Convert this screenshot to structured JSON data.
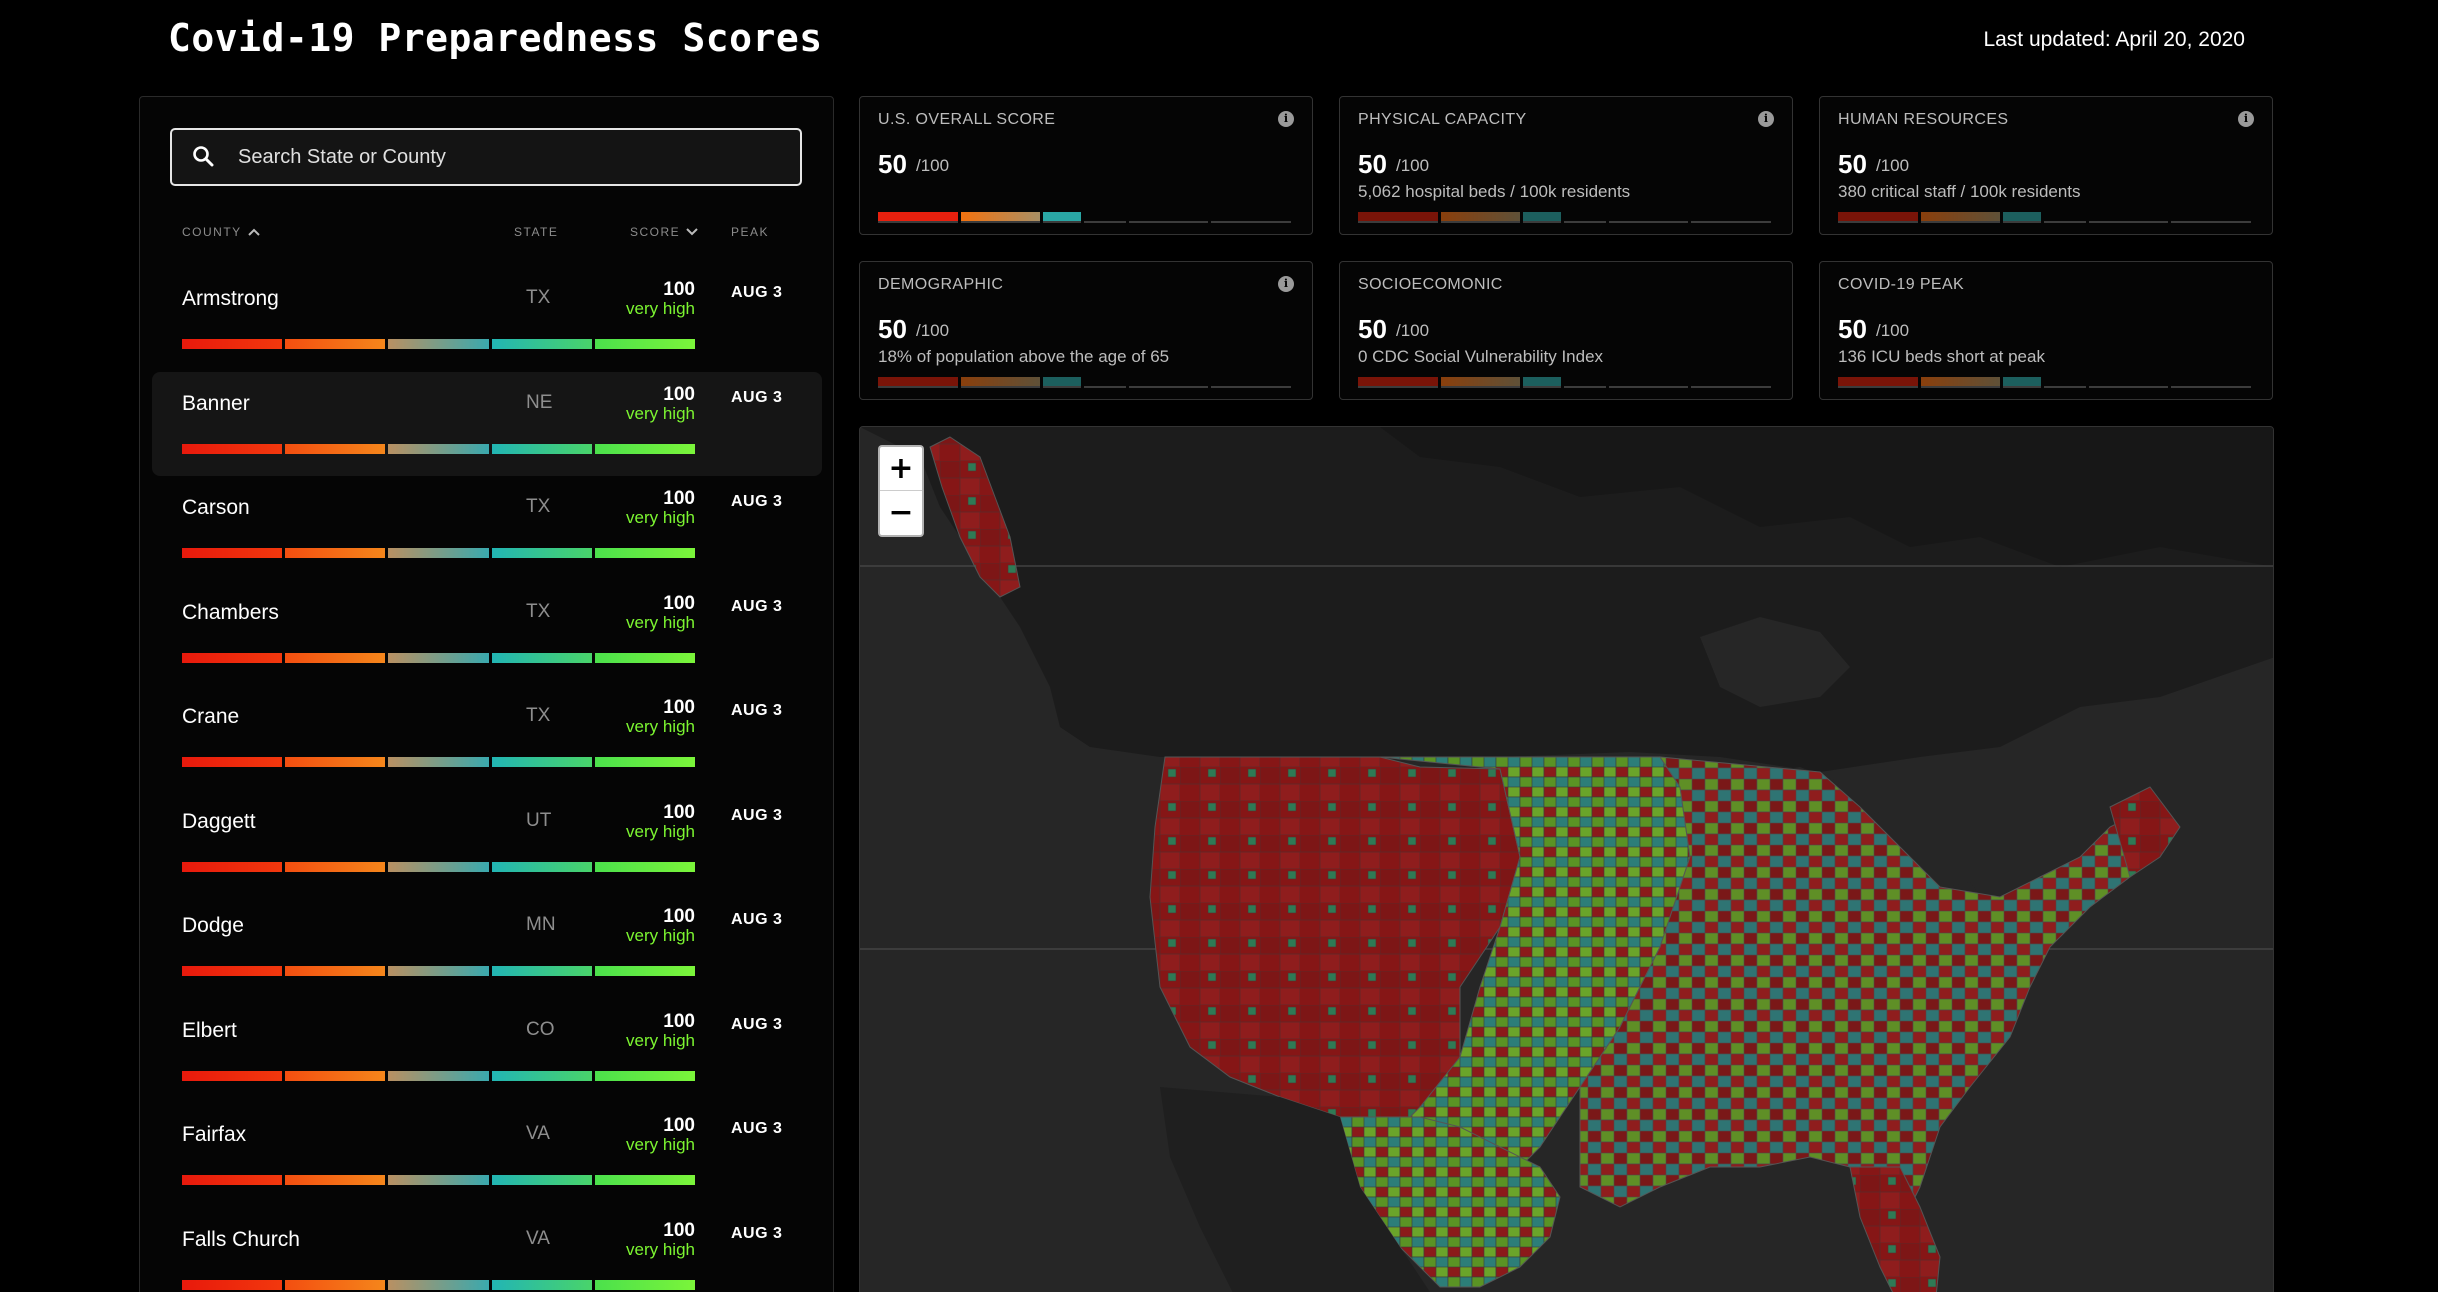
{
  "page": {
    "title": "Covid-19 Preparedness Scores",
    "last_updated": "Last updated: April 20, 2020"
  },
  "search": {
    "placeholder": "Search State or County",
    "value": ""
  },
  "table": {
    "headers": {
      "county": "COUNTY",
      "state": "STATE",
      "score": "SCORE",
      "peak": "PEAK"
    },
    "rows": [
      {
        "county": "Armstrong",
        "state": "TX",
        "score": "100",
        "level": "very high",
        "peak": "AUG 3"
      },
      {
        "county": "Banner",
        "state": "NE",
        "score": "100",
        "level": "very high",
        "peak": "AUG 3"
      },
      {
        "county": "Carson",
        "state": "TX",
        "score": "100",
        "level": "very high",
        "peak": "AUG 3"
      },
      {
        "county": "Chambers",
        "state": "TX",
        "score": "100",
        "level": "very high",
        "peak": "AUG 3"
      },
      {
        "county": "Crane",
        "state": "TX",
        "score": "100",
        "level": "very high",
        "peak": "AUG 3"
      },
      {
        "county": "Daggett",
        "state": "UT",
        "score": "100",
        "level": "very high",
        "peak": "AUG 3"
      },
      {
        "county": "Dodge",
        "state": "MN",
        "score": "100",
        "level": "very high",
        "peak": "AUG 3"
      },
      {
        "county": "Elbert",
        "state": "CO",
        "score": "100",
        "level": "very high",
        "peak": "AUG 3"
      },
      {
        "county": "Fairfax",
        "state": "VA",
        "score": "100",
        "level": "very high",
        "peak": "AUG 3"
      },
      {
        "county": "Falls Church",
        "state": "VA",
        "score": "100",
        "level": "very high",
        "peak": "AUG 3"
      }
    ]
  },
  "cards": [
    {
      "label": "U.S. OVERALL SCORE",
      "score": "50",
      "denom": "/100",
      "desc": "",
      "info": true
    },
    {
      "label": "PHYSICAL CAPACITY",
      "score": "50",
      "denom": "/100",
      "desc": "5,062 hospital beds / 100k residents",
      "info": true
    },
    {
      "label": "HUMAN RESOURCES",
      "score": "50",
      "denom": "/100",
      "desc": "380 critical staff / 100k residents",
      "info": true
    },
    {
      "label": "DEMOGRAPHIC",
      "score": "50",
      "denom": "/100",
      "desc": "18% of population above the age of 65",
      "info": true
    },
    {
      "label": "SOCIOECOMONIC",
      "score": "50",
      "denom": "/100",
      "desc": "0 CDC Social Vulnerability Index",
      "info": false
    },
    {
      "label": "COVID-19 PEAK",
      "score": "50",
      "denom": "/100",
      "desc": "136 ICU beds short at peak",
      "info": false
    }
  ],
  "map": {
    "zoom_in": "+",
    "zoom_out": "−"
  },
  "colors": {
    "background": "#000000",
    "very_high": "#7cf531",
    "low": "#8b1a1a",
    "mid": "#2f7f7a",
    "high": "#5f9a26"
  },
  "icons": {
    "search": "search-icon",
    "info": "info-icon",
    "sort_up": "caret-up-icon",
    "sort_down": "caret-down-icon"
  }
}
